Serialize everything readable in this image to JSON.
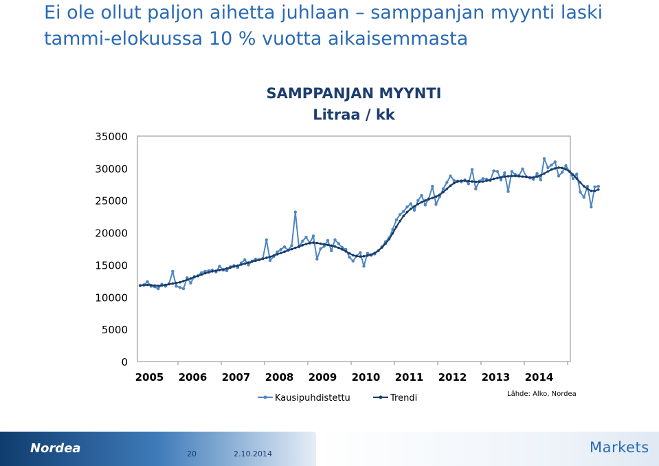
{
  "slide": {
    "title": "Ei ole ollut paljon aihetta juhlaan – samppanjan myynti laski tammi-elokuussa 10 % vuotta aikaisemmasta",
    "source": "Lähde: Alko, Nordea",
    "page_number": "20",
    "date": "2.10.2014",
    "brand_left": "Nordea",
    "brand_right": "Markets"
  },
  "colors": {
    "title": "#2a6ab3",
    "series_raw": "#4f86c0",
    "series_trend": "#1a3c6c"
  },
  "chart_data": {
    "type": "line",
    "title": "SAMPPANJAN MYYNTI",
    "subtitle": "Litraa / kk",
    "xlabel": "",
    "ylabel": "",
    "ylim": [
      0,
      35000
    ],
    "yticks": [
      "0",
      "5000",
      "10000",
      "15000",
      "20000",
      "25000",
      "30000",
      "35000"
    ],
    "xticks": [
      "2005",
      "2006",
      "2007",
      "2008",
      "2009",
      "2010",
      "2011",
      "2012",
      "2013",
      "2014"
    ],
    "x_start": "2005-01",
    "grid": false,
    "legend": "bottom",
    "series": [
      {
        "name": "Kausipuhdistettu",
        "values": [
          11800,
          11900,
          12400,
          11700,
          11600,
          11300,
          12000,
          11700,
          12100,
          14000,
          11700,
          11500,
          11300,
          13000,
          12200,
          13200,
          13300,
          13800,
          14000,
          14100,
          14200,
          13900,
          14800,
          14200,
          14100,
          14700,
          14900,
          14600,
          15300,
          15800,
          15000,
          15600,
          15900,
          15800,
          16000,
          18900,
          15700,
          16300,
          17000,
          17400,
          17800,
          17300,
          18000,
          23200,
          17800,
          18700,
          19300,
          18400,
          19500,
          15900,
          17500,
          17900,
          18800,
          17200,
          18900,
          18300,
          17700,
          17400,
          16200,
          15600,
          16400,
          16900,
          14800,
          16800,
          16500,
          16700,
          17200,
          17800,
          18600,
          19200,
          20500,
          22000,
          22800,
          23300,
          24000,
          24500,
          23500,
          25000,
          25800,
          24300,
          25300,
          27200,
          24400,
          25600,
          26800,
          27800,
          28800,
          28100,
          28000,
          27900,
          28200,
          27600,
          29800,
          26800,
          28000,
          28400,
          28300,
          28100,
          29600,
          29500,
          28200,
          29300,
          26400,
          29500,
          29000,
          28900,
          29900,
          28700,
          28500,
          28300,
          29200,
          28200,
          31500,
          30100,
          30500,
          31000,
          28800,
          29400,
          30400,
          29500,
          28400,
          29100,
          26300,
          25500,
          27200,
          24000,
          27100,
          27200
        ]
      },
      {
        "name": "Trendi",
        "values": [
          11800,
          11850,
          11900,
          11850,
          11800,
          11750,
          11800,
          11900,
          12000,
          12100,
          12200,
          12300,
          12500,
          12700,
          12900,
          13100,
          13300,
          13500,
          13700,
          13850,
          14000,
          14100,
          14200,
          14300,
          14450,
          14600,
          14750,
          14900,
          15050,
          15200,
          15350,
          15500,
          15650,
          15800,
          15950,
          16100,
          16250,
          16450,
          16650,
          16850,
          17050,
          17250,
          17450,
          17650,
          17850,
          18050,
          18250,
          18400,
          18450,
          18400,
          18300,
          18200,
          18100,
          18000,
          17850,
          17650,
          17400,
          17100,
          16800,
          16500,
          16350,
          16300,
          16350,
          16450,
          16600,
          16850,
          17200,
          17700,
          18300,
          19000,
          19900,
          20900,
          21800,
          22600,
          23200,
          23700,
          24100,
          24450,
          24750,
          25000,
          25200,
          25400,
          25600,
          25900,
          26300,
          26800,
          27300,
          27700,
          27950,
          28050,
          28050,
          28000,
          27950,
          27900,
          27900,
          27950,
          28050,
          28200,
          28350,
          28500,
          28600,
          28700,
          28750,
          28800,
          28800,
          28750,
          28700,
          28650,
          28600,
          28600,
          28700,
          28900,
          29200,
          29500,
          29800,
          30000,
          30100,
          30050,
          29850,
          29500,
          29000,
          28400,
          27800,
          27200,
          26800,
          26500,
          26500,
          26700
        ]
      }
    ]
  }
}
